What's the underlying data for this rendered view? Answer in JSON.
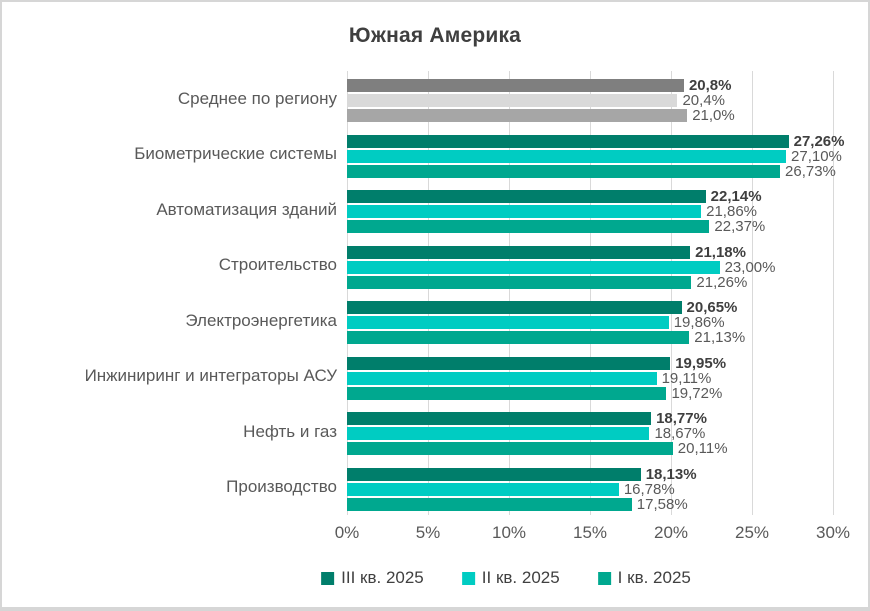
{
  "title": "Южная Америка",
  "colors": {
    "grid": "#d9d9d9",
    "title_text": "#3f3f3f",
    "category_text": "#595959",
    "bold_label_text": "#3f3f3f",
    "label_text": "#595959",
    "legend_text": "#404040",
    "border": "#d6d6d6"
  },
  "chart_data": {
    "type": "bar",
    "orientation": "horizontal",
    "title": "Южная Америка",
    "grid": true,
    "x_axis": {
      "min": 0,
      "max": 30,
      "unit": "%",
      "ticks": [
        "0%",
        "5%",
        "10%",
        "15%",
        "20%",
        "25%",
        "30%"
      ]
    },
    "legend_position": "bottom",
    "categories": [
      "Среднее по региону",
      "Биометрические системы",
      "Автоматизация зданий",
      "Строительство",
      "Электроэнергетика",
      "Инжиниринг и интеграторы АСУ",
      "Нефть и газ",
      "Производство"
    ],
    "series": [
      {
        "name": "III кв. 2025",
        "color": "#007e6b",
        "values": [
          20.8,
          27.26,
          22.14,
          21.18,
          20.65,
          19.95,
          18.77,
          18.13
        ],
        "labels": [
          "20,8%",
          "27,26%",
          "22,14%",
          "21,18%",
          "20,65%",
          "19,95%",
          "18,77%",
          "18,13%"
        ],
        "label_bold": true
      },
      {
        "name": "II кв. 2025",
        "color": "#00ccc2",
        "values": [
          20.4,
          27.1,
          21.86,
          23.0,
          19.86,
          19.11,
          18.67,
          16.78
        ],
        "labels": [
          "20,4%",
          "27,10%",
          "21,86%",
          "23,00%",
          "19,86%",
          "19,11%",
          "18,67%",
          "16,78%"
        ],
        "label_bold": false
      },
      {
        "name": "I кв. 2025",
        "color": "#00a88f",
        "values": [
          21.0,
          26.73,
          22.37,
          21.26,
          21.13,
          19.72,
          20.11,
          17.58
        ],
        "labels": [
          "21,0%",
          "26,73%",
          "22,37%",
          "21,26%",
          "21,13%",
          "19,72%",
          "20,11%",
          "17,58%"
        ],
        "label_bold": false
      }
    ],
    "gray_category_index": 0,
    "gray_series_colors": [
      "#7f7f7f",
      "#d9d9d9",
      "#a6a6a6"
    ]
  }
}
